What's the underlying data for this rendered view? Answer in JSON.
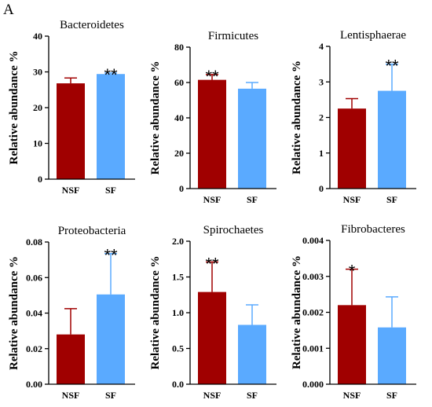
{
  "panel_label": "A",
  "colors": {
    "NSF": "#a00000",
    "SF": "#5aaaff"
  },
  "chart_data": [
    {
      "type": "bar",
      "title": "Bacteroidetes",
      "ylabel": "Relative abundance %",
      "xlabel": "",
      "categories": [
        "NSF",
        "SF"
      ],
      "values": [
        26.8,
        29.4
      ],
      "errors": [
        1.5,
        0.3
      ],
      "ylim": [
        0,
        40
      ],
      "yticks": [
        "0",
        "10",
        "20",
        "30",
        "40"
      ],
      "significance": [
        "",
        "**"
      ]
    },
    {
      "type": "bar",
      "title": "Firmicutes",
      "ylabel": "Relative abundance %",
      "xlabel": "",
      "categories": [
        "NSF",
        "SF"
      ],
      "values": [
        61.5,
        56.5
      ],
      "errors": [
        3.0,
        3.5
      ],
      "ylim": [
        0,
        80
      ],
      "yticks": [
        "0",
        "20",
        "40",
        "60",
        "80"
      ],
      "significance": [
        "**",
        ""
      ]
    },
    {
      "type": "bar",
      "title": "Lentisphaerae",
      "ylabel": "Relative abundance %",
      "xlabel": "",
      "categories": [
        "NSF",
        "SF"
      ],
      "values": [
        2.25,
        2.75
      ],
      "errors": [
        0.28,
        0.75
      ],
      "ylim": [
        0,
        4
      ],
      "yticks": [
        "0",
        "1",
        "2",
        "3",
        "4"
      ],
      "significance": [
        "",
        "**"
      ]
    },
    {
      "type": "bar",
      "title": "Proteobacteria",
      "ylabel": "Relative abundance %",
      "xlabel": "",
      "categories": [
        "NSF",
        "SF"
      ],
      "values": [
        0.028,
        0.0505
      ],
      "errors": [
        0.0145,
        0.023
      ],
      "ylim": [
        0,
        0.08
      ],
      "yticks": [
        "0.00",
        "0.02",
        "0.04",
        "0.06",
        "0.08"
      ],
      "significance": [
        "",
        "**"
      ]
    },
    {
      "type": "bar",
      "title": "Spirochaetes",
      "ylabel": "Relative abundance %",
      "xlabel": "",
      "categories": [
        "NSF",
        "SF"
      ],
      "values": [
        1.29,
        0.83
      ],
      "errors": [
        0.42,
        0.28
      ],
      "ylim": [
        0,
        2.0
      ],
      "yticks": [
        "0.0",
        "0.5",
        "1.0",
        "1.5",
        "2.0"
      ],
      "significance": [
        "**",
        ""
      ]
    },
    {
      "type": "bar",
      "title": "Fibrobacteres",
      "ylabel": "Relative abundance %",
      "xlabel": "",
      "categories": [
        "NSF",
        "SF"
      ],
      "values": [
        0.0022,
        0.00158
      ],
      "errors": [
        0.001,
        0.00085
      ],
      "ylim": [
        0,
        0.004
      ],
      "yticks": [
        "0.000",
        "0.001",
        "0.002",
        "0.003",
        "0.004"
      ],
      "significance": [
        "*",
        ""
      ]
    }
  ]
}
